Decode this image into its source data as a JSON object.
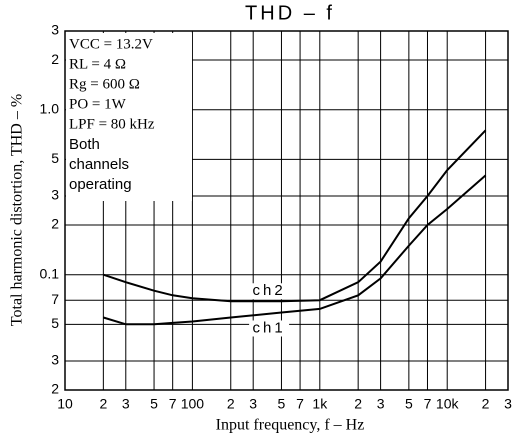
{
  "chart_data": {
    "type": "line",
    "title": "THD – f",
    "xlabel": "Input frequency, f – Hz",
    "ylabel": "Total harmonic distortion, THD – %",
    "annotations": [
      "VCC = 13.2V",
      "RL = 4 Ω",
      "Rg = 600 Ω",
      "PO = 1W",
      "LPF = 80 kHz",
      "Both",
      "channels",
      "operating"
    ],
    "x": [
      20,
      30,
      50,
      70,
      100,
      200,
      500,
      1000,
      2000,
      3000,
      5000,
      7000,
      10000,
      20000
    ],
    "series": [
      {
        "name": "ch2",
        "color": "#000000",
        "values": [
          0.1,
          0.09,
          0.08,
          0.075,
          0.072,
          0.069,
          0.069,
          0.07,
          0.09,
          0.12,
          0.22,
          0.3,
          0.43,
          0.75
        ]
      },
      {
        "name": "ch1",
        "color": "#000000",
        "values": [
          0.055,
          0.05,
          0.05,
          0.051,
          0.052,
          0.055,
          0.059,
          0.062,
          0.075,
          0.095,
          0.15,
          0.2,
          0.25,
          0.4
        ]
      }
    ],
    "xlim": [
      10,
      30000
    ],
    "ylim": [
      0.02,
      3
    ],
    "log_x": true,
    "log_y": true,
    "grid": true,
    "xticks": [
      10,
      {
        "value": 20,
        "label": "2"
      },
      {
        "value": 30,
        "label": "3"
      },
      {
        "value": 50,
        "label": "5"
      },
      {
        "value": 70,
        "label": "7"
      },
      100,
      {
        "value": 200,
        "label": "2"
      },
      {
        "value": 300,
        "label": "3"
      },
      {
        "value": 500,
        "label": "5"
      },
      {
        "value": 700,
        "label": "7"
      },
      {
        "value": 1000,
        "label": "1k"
      },
      {
        "value": 2000,
        "label": "2"
      },
      {
        "value": 3000,
        "label": "3"
      },
      {
        "value": 5000,
        "label": "5"
      },
      {
        "value": 7000,
        "label": "7"
      },
      {
        "value": 10000,
        "label": "10k"
      },
      {
        "value": 20000,
        "label": "2"
      },
      {
        "value": 30000,
        "label": "3"
      }
    ],
    "yticks": [
      3,
      2,
      {
        "value": 1,
        "label": "1.0"
      },
      {
        "value": 0.5,
        "label": "5"
      },
      {
        "value": 0.3,
        "label": "3"
      },
      {
        "value": 0.2,
        "label": "2"
      },
      0.1,
      {
        "value": 0.07,
        "label": "7"
      },
      {
        "value": 0.05,
        "label": "5"
      },
      {
        "value": 0.03,
        "label": "3"
      },
      {
        "value": 0.02,
        "label": "2"
      }
    ]
  }
}
